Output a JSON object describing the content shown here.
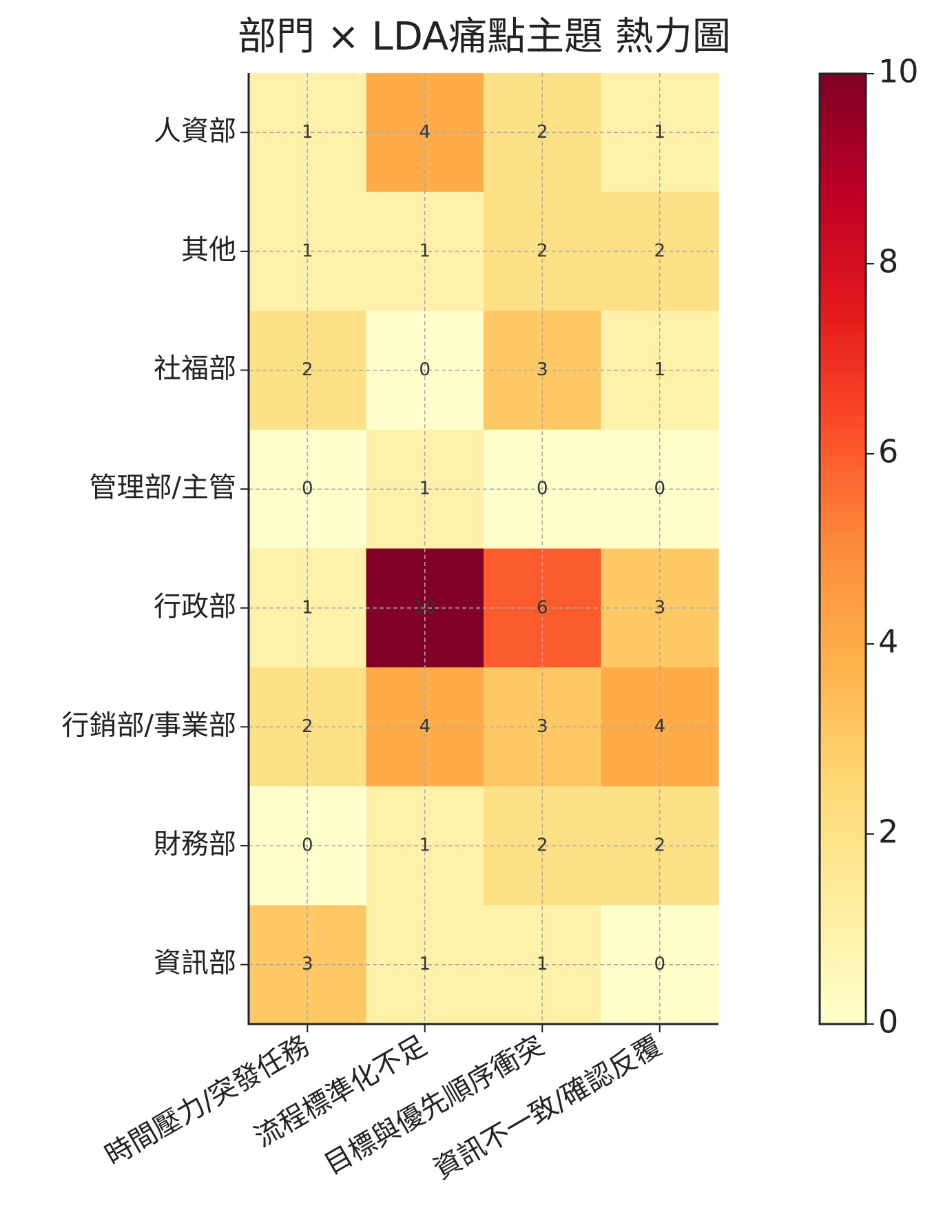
{
  "chart_data": {
    "type": "heatmap",
    "title": "部門 × LDA痛點主題 熱力圖",
    "rows": [
      "人資部",
      "其他",
      "社福部",
      "管理部/主管",
      "行政部",
      "行銷部/事業部",
      "財務部",
      "資訊部"
    ],
    "columns": [
      "時間壓力/突發任務",
      "流程標準化不足",
      "目標與優先順序衝突",
      "資訊不一致/確認反覆"
    ],
    "values": [
      [
        1,
        4,
        2,
        1
      ],
      [
        1,
        1,
        2,
        2
      ],
      [
        2,
        0,
        3,
        1
      ],
      [
        0,
        1,
        0,
        0
      ],
      [
        1,
        10,
        6,
        3
      ],
      [
        2,
        4,
        3,
        4
      ],
      [
        0,
        1,
        2,
        2
      ],
      [
        3,
        1,
        1,
        0
      ]
    ],
    "colormap": [
      "#ffffcc",
      "#ffeda0",
      "#fed976",
      "#feb24c",
      "#fd8d3c",
      "#fc4e2a",
      "#e31a1c",
      "#bd0026",
      "#800026"
    ],
    "clim": [
      0,
      10
    ],
    "cticks": [
      0,
      2,
      4,
      6,
      8,
      10
    ],
    "grid": true
  }
}
